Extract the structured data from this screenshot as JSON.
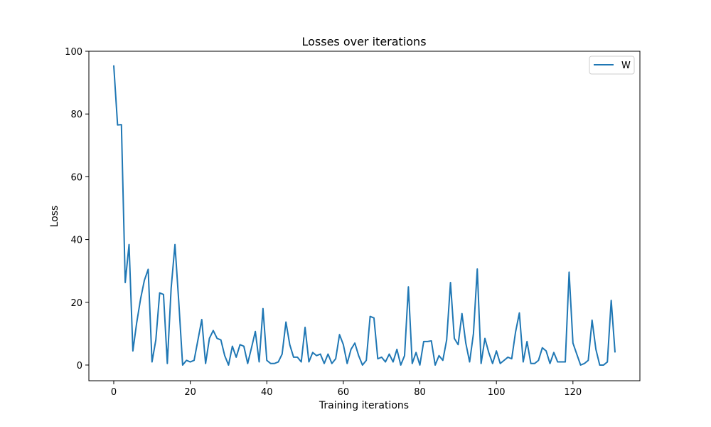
{
  "chart_data": {
    "type": "line",
    "title": "Losses over iterations",
    "xlabel": "Training iterations",
    "ylabel": "Loss",
    "xlim": [
      -6.5,
      137.5
    ],
    "ylim": [
      -5,
      100
    ],
    "xticks": [
      0,
      20,
      40,
      60,
      80,
      100,
      120
    ],
    "yticks": [
      0,
      20,
      40,
      60,
      80,
      100
    ],
    "grid": false,
    "legend_position": "top-right",
    "series": [
      {
        "name": "W",
        "color": "#1f77b4",
        "x": [
          0,
          1,
          2,
          3,
          4,
          5,
          6,
          7,
          8,
          9,
          10,
          11,
          12,
          13,
          14,
          15,
          16,
          17,
          18,
          19,
          20,
          21,
          22,
          23,
          24,
          25,
          26,
          27,
          28,
          29,
          30,
          31,
          32,
          33,
          34,
          35,
          36,
          37,
          38,
          39,
          40,
          41,
          42,
          43,
          44,
          45,
          46,
          47,
          48,
          49,
          50,
          51,
          52,
          53,
          54,
          55,
          56,
          57,
          58,
          59,
          60,
          61,
          62,
          63,
          64,
          65,
          66,
          67,
          68,
          69,
          70,
          71,
          72,
          73,
          74,
          75,
          76,
          77,
          78,
          79,
          80,
          81,
          82,
          83,
          84,
          85,
          86,
          87,
          88,
          89,
          90,
          91,
          92,
          93,
          94,
          95,
          96,
          97,
          98,
          99,
          100,
          101,
          102,
          103,
          104,
          105,
          106,
          107,
          108,
          109,
          110,
          111,
          112,
          113,
          114,
          115,
          116,
          117,
          118,
          119,
          120,
          121,
          122,
          123,
          124,
          125,
          126,
          127,
          128,
          129,
          130,
          131
        ],
        "values": [
          95.5,
          76.5,
          76.6,
          26.3,
          38.4,
          4.5,
          13.5,
          21.0,
          27.0,
          30.5,
          1.0,
          8.0,
          23.0,
          22.5,
          0.5,
          24.5,
          38.4,
          20.0,
          0.0,
          1.5,
          1.0,
          1.5,
          8.0,
          14.5,
          0.5,
          8.5,
          11.0,
          8.5,
          8.0,
          3.0,
          0.0,
          6.0,
          2.5,
          6.5,
          6.0,
          0.5,
          5.5,
          10.7,
          1.0,
          18.0,
          1.5,
          0.5,
          0.5,
          1.0,
          3.5,
          13.7,
          6.5,
          2.5,
          2.5,
          1.0,
          12.0,
          1.0,
          4.0,
          3.0,
          3.5,
          0.5,
          3.5,
          0.5,
          2.0,
          9.7,
          6.5,
          0.5,
          5.0,
          7.0,
          3.0,
          0.0,
          1.5,
          15.5,
          15.0,
          2.0,
          2.5,
          1.0,
          3.5,
          1.0,
          5.0,
          0.0,
          3.0,
          24.9,
          0.5,
          4.0,
          0.0,
          7.5,
          7.5,
          7.7,
          0.0,
          3.0,
          1.5,
          8.0,
          26.3,
          8.5,
          6.5,
          16.4,
          7.0,
          1.0,
          10.0,
          30.6,
          0.5,
          8.5,
          4.0,
          0.5,
          4.5,
          0.5,
          1.5,
          2.5,
          2.0,
          10.5,
          16.6,
          1.0,
          7.5,
          0.5,
          0.5,
          1.5,
          5.5,
          4.5,
          0.5,
          4.0,
          1.0,
          1.0,
          1.0,
          29.6,
          7.0,
          3.5,
          0.0,
          0.5,
          1.5,
          14.3,
          5.0,
          0.0,
          0.0,
          1.0,
          20.6,
          4.0
        ]
      }
    ]
  }
}
